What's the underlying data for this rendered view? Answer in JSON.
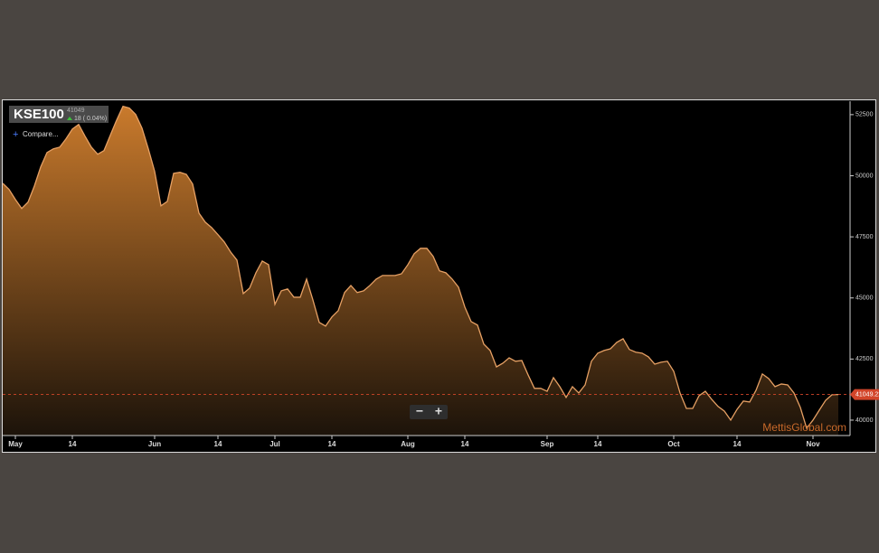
{
  "chart_data": {
    "type": "area",
    "symbol": "KSE100",
    "last": 41049,
    "change": "18 ( 0.04%)",
    "compare": "Compare...",
    "zoom_out": "−",
    "zoom_in": "+",
    "watermark": "MettisGlobal.com",
    "last_price": 41049.22,
    "last_price_color": "#d2452a",
    "color": "#e6a064",
    "fill_top": "#c97a2c",
    "fill_bottom": "#1c130a",
    "categories": [
      null,
      null,
      "May",
      null,
      null,
      null,
      null,
      null,
      null,
      null,
      null,
      "14",
      null,
      null,
      null,
      null,
      null,
      null,
      null,
      null,
      null,
      null,
      null,
      null,
      "Jun",
      null,
      null,
      null,
      null,
      null,
      null,
      null,
      null,
      null,
      "14",
      null,
      null,
      null,
      null,
      null,
      null,
      null,
      null,
      "Jul",
      null,
      null,
      null,
      null,
      null,
      null,
      null,
      null,
      "14",
      null,
      null,
      null,
      null,
      null,
      null,
      null,
      null,
      null,
      null,
      null,
      "Aug",
      null,
      null,
      null,
      null,
      null,
      null,
      null,
      null,
      "14",
      null,
      null,
      null,
      null,
      null,
      null,
      null,
      null,
      null,
      null,
      null,
      null,
      "Sep",
      null,
      null,
      null,
      null,
      null,
      null,
      null,
      "14",
      null,
      null,
      null,
      null,
      null,
      null,
      null,
      null,
      null,
      null,
      null,
      "Oct",
      null,
      null,
      null,
      null,
      null,
      null,
      null,
      null,
      null,
      "14",
      null,
      null,
      null,
      null,
      null,
      null,
      null,
      null,
      null,
      null,
      null,
      "Nov",
      null,
      null,
      null,
      null
    ],
    "values": [
      49690,
      49440,
      49030,
      48660,
      48920,
      49580,
      50360,
      50950,
      51100,
      51170,
      51510,
      51910,
      52100,
      51620,
      51170,
      50880,
      51030,
      51660,
      52280,
      52840,
      52770,
      52510,
      51950,
      51100,
      50180,
      48770,
      48950,
      50100,
      50140,
      50060,
      49660,
      48470,
      48100,
      47880,
      47590,
      47290,
      46880,
      46550,
      45180,
      45400,
      46030,
      46510,
      46360,
      44740,
      45290,
      45370,
      45030,
      45030,
      45770,
      44920,
      44000,
      43850,
      44220,
      44480,
      45220,
      45510,
      45220,
      45290,
      45510,
      45770,
      45920,
      45920,
      45920,
      45990,
      46360,
      46810,
      47030,
      47030,
      46700,
      46110,
      46030,
      45770,
      45440,
      44630,
      44030,
      43890,
      43110,
      42850,
      42180,
      42330,
      42550,
      42410,
      42440,
      41850,
      41300,
      41300,
      41180,
      41740,
      41370,
      40930,
      41370,
      41110,
      41440,
      42410,
      42740,
      42850,
      42920,
      43180,
      43330,
      42890,
      42780,
      42740,
      42590,
      42290,
      42370,
      42410,
      42000,
      41110,
      40480,
      40480,
      41000,
      41180,
      40850,
      40560,
      40370,
      40000,
      40440,
      40780,
      40740,
      41220,
      41890,
      41700,
      41370,
      41480,
      41440,
      41110,
      40520,
      39670,
      40000,
      40410,
      40810,
      41040,
      41049
    ],
    "ylim": [
      39370,
      53050
    ],
    "yticks": [
      40000,
      42500,
      45000,
      47500,
      50000,
      52500
    ]
  }
}
